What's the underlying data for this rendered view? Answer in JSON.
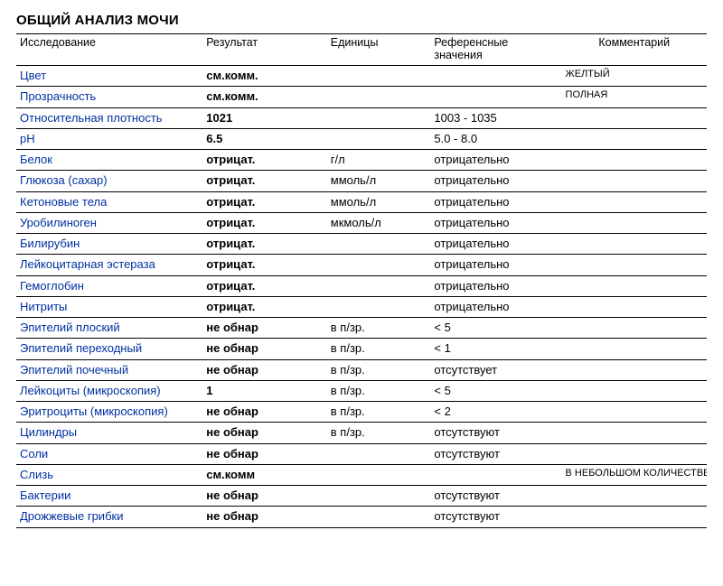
{
  "title": "ОБЩИЙ АНАЛИЗ МОЧИ",
  "columns": [
    "Исследование",
    "Результат",
    "Единицы",
    "Референсные значения",
    "Комментарий"
  ],
  "colors": {
    "test_name": "#0030a0",
    "text": "#000000",
    "border": "#000000",
    "background": "#ffffff"
  },
  "typography": {
    "title_fontsize_pt": 11,
    "body_fontsize_pt": 10,
    "comment_fontsize_pt": 8,
    "font_family": "Verdana"
  },
  "column_widths_pct": [
    27,
    18,
    15,
    19,
    21
  ],
  "rows": [
    {
      "test": "Цвет",
      "result": "см.комм.",
      "units": "",
      "ref": "",
      "comment": "ЖЕЛТЫЙ"
    },
    {
      "test": "Прозрачность",
      "result": "см.комм.",
      "units": "",
      "ref": "",
      "comment": "ПОЛНАЯ"
    },
    {
      "test": "Относительная плотность",
      "result": "1021",
      "units": "",
      "ref": "1003 - 1035",
      "comment": ""
    },
    {
      "test": "pH",
      "result": "6.5",
      "units": "",
      "ref": "5.0 - 8.0",
      "comment": ""
    },
    {
      "test": "Белок",
      "result": "отрицат.",
      "units": "г/л",
      "ref": "отрицательно",
      "comment": ""
    },
    {
      "test": "Глюкоза (сахар)",
      "result": "отрицат.",
      "units": "ммоль/л",
      "ref": "отрицательно",
      "comment": ""
    },
    {
      "test": "Кетоновые тела",
      "result": "отрицат.",
      "units": "ммоль/л",
      "ref": "отрицательно",
      "comment": ""
    },
    {
      "test": "Уробилиноген",
      "result": "отрицат.",
      "units": "мкмоль/л",
      "ref": "отрицательно",
      "comment": ""
    },
    {
      "test": "Билирубин",
      "result": "отрицат.",
      "units": "",
      "ref": "отрицательно",
      "comment": ""
    },
    {
      "test": "Лейкоцитарная эстераза",
      "result": "отрицат.",
      "units": "",
      "ref": "отрицательно",
      "comment": ""
    },
    {
      "test": "Гемоглобин",
      "result": "отрицат.",
      "units": "",
      "ref": "отрицательно",
      "comment": ""
    },
    {
      "test": "Нитриты",
      "result": "отрицат.",
      "units": "",
      "ref": "отрицательно",
      "comment": ""
    },
    {
      "test": "Эпителий плоский",
      "result": "не обнар",
      "units": "в п/зр.",
      "ref": "< 5",
      "comment": ""
    },
    {
      "test": "Эпителий переходный",
      "result": "не обнар",
      "units": "в п/зр.",
      "ref": "< 1",
      "comment": ""
    },
    {
      "test": "Эпителий почечный",
      "result": "не обнар",
      "units": "в п/зр.",
      "ref": "отсутствует",
      "comment": ""
    },
    {
      "test": "Лейкоциты (микроскопия)",
      "result": "1",
      "units": "в п/зр.",
      "ref": "< 5",
      "comment": ""
    },
    {
      "test": "Эритроциты (микроскопия)",
      "result": "не обнар",
      "units": "в п/зр.",
      "ref": "< 2",
      "comment": ""
    },
    {
      "test": "Цилиндры",
      "result": "не обнар",
      "units": "в п/зр.",
      "ref": "отсутствуют",
      "comment": ""
    },
    {
      "test": "Соли",
      "result": "не обнар",
      "units": "",
      "ref": "отсутствуют",
      "comment": ""
    },
    {
      "test": "Слизь",
      "result": "см.комм",
      "units": "",
      "ref": "",
      "comment": "В НЕБОЛЬШОМ КОЛИЧЕСТВЕ"
    },
    {
      "test": "Бактерии",
      "result": "не обнар",
      "units": "",
      "ref": "отсутствуют",
      "comment": ""
    },
    {
      "test": "Дрожжевые грибки",
      "result": "не обнар",
      "units": "",
      "ref": "отсутствуют",
      "comment": ""
    }
  ]
}
